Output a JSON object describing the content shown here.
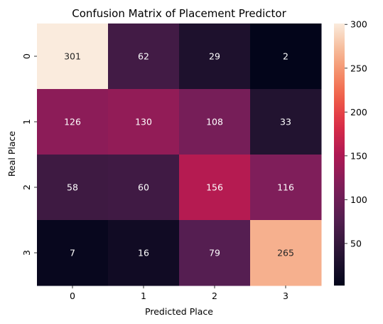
{
  "chart_data": {
    "type": "heatmap",
    "title": "Confusion Matrix of Placement Predictor",
    "xlabel": "Predicted Place",
    "ylabel": "Real Place",
    "x_categories": [
      "0",
      "1",
      "2",
      "3"
    ],
    "y_categories": [
      "0",
      "1",
      "2",
      "3"
    ],
    "values": [
      [
        301,
        62,
        29,
        2
      ],
      [
        126,
        130,
        108,
        33
      ],
      [
        58,
        60,
        156,
        116
      ],
      [
        7,
        16,
        79,
        265
      ]
    ],
    "colormap": "rocket",
    "color_range": [
      2,
      301
    ],
    "colorbar_ticks": [
      "50",
      "100",
      "150",
      "200",
      "250",
      "300"
    ],
    "annotated": true
  }
}
